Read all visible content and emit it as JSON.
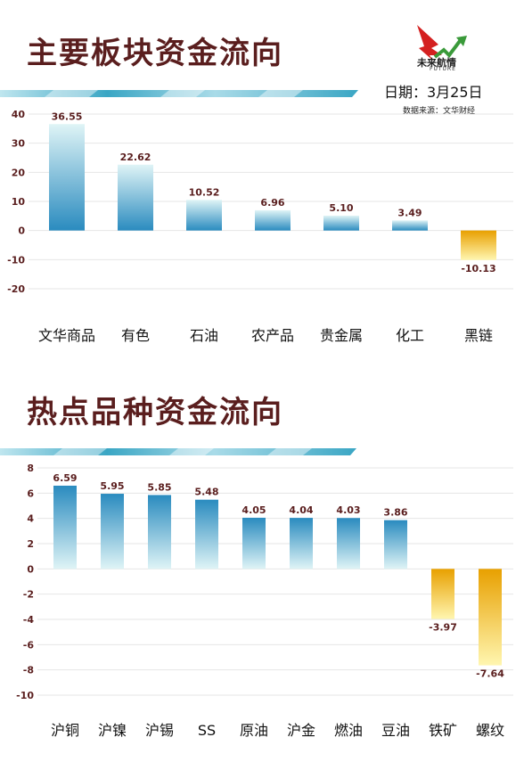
{
  "header": {
    "logo_text": "未来航情",
    "logo_sub": "FUTURE",
    "date": "日期：3月25日",
    "source": "数据来源：文华财经"
  },
  "colors": {
    "title": "#5a1e1e",
    "positive_dark": "#2a8bbf",
    "positive_light": "#dff4f6",
    "negative_dark": "#e8a000",
    "negative_light": "#fff6b0",
    "band": "#3aa6c4"
  },
  "charts": {
    "sector": {
      "title": "主要板块资金流向"
    },
    "hot": {
      "title": "热点品种资金流向"
    }
  },
  "chart_data": [
    {
      "type": "bar",
      "title": "主要板块资金流向",
      "categories": [
        "文华商品",
        "有色",
        "石油",
        "农产品",
        "贵金属",
        "化工",
        "黑链"
      ],
      "values": [
        36.55,
        22.62,
        10.52,
        6.96,
        5.1,
        3.49,
        -10.13
      ],
      "value_labels": [
        "36.55",
        "22.62",
        "10.52",
        "6.96",
        "5.10",
        "3.49",
        "-10.13"
      ],
      "yticks": [
        40,
        30,
        20,
        10,
        0,
        -10,
        -20
      ],
      "ylim": [
        -20,
        40
      ],
      "grid": true,
      "xlabel": "",
      "ylabel": ""
    },
    {
      "type": "bar",
      "title": "热点品种资金流向",
      "categories": [
        "沪铜",
        "沪镍",
        "沪锡",
        "SS",
        "原油",
        "沪金",
        "燃油",
        "豆油",
        "铁矿",
        "螺纹"
      ],
      "values": [
        6.59,
        5.95,
        5.85,
        5.48,
        4.05,
        4.04,
        4.03,
        3.86,
        -3.97,
        -7.64
      ],
      "value_labels": [
        "6.59",
        "5.95",
        "5.85",
        "5.48",
        "4.05",
        "4.04",
        "4.03",
        "3.86",
        "-3.97",
        "-7.64"
      ],
      "yticks": [
        8,
        6,
        4,
        2,
        0,
        -2,
        -4,
        -6,
        -8,
        -10
      ],
      "ylim": [
        -10,
        8
      ],
      "grid": true,
      "xlabel": "",
      "ylabel": ""
    }
  ]
}
